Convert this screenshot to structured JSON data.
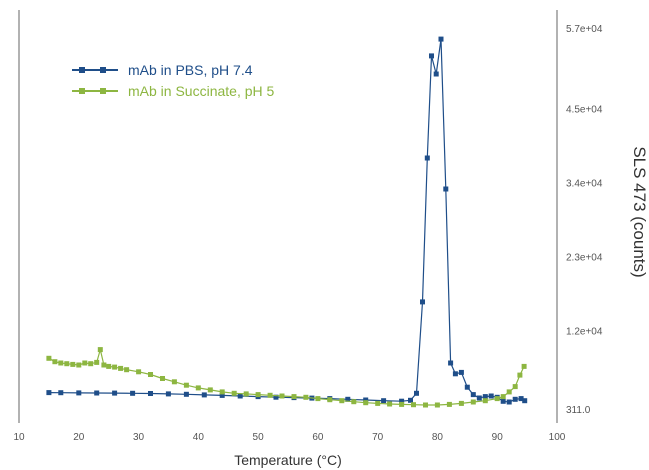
{
  "chart_data": {
    "type": "line",
    "xlabel": "Temperature (°C)",
    "ylabel": "SLS 473 (counts)",
    "xlim": [
      10,
      100
    ],
    "ylim": [
      311,
      57000
    ],
    "x_ticks": [
      "10",
      "20",
      "30",
      "40",
      "50",
      "60",
      "70",
      "80",
      "90",
      "100"
    ],
    "y_ticks": [
      "311.0",
      "1.2e+04",
      "2.3e+04",
      "3.4e+04",
      "4.5e+04",
      "5.7e+04"
    ],
    "y_tick_values": [
      311,
      12000,
      23000,
      34000,
      45000,
      57000
    ],
    "legend_position": "top-left",
    "series": [
      {
        "name": "mAb in PBS, pH 7.4",
        "color": "#1f4e89",
        "points": [
          [
            15,
            2900
          ],
          [
            17,
            2880
          ],
          [
            20,
            2850
          ],
          [
            23,
            2840
          ],
          [
            26,
            2820
          ],
          [
            29,
            2790
          ],
          [
            32,
            2760
          ],
          [
            35,
            2700
          ],
          [
            38,
            2640
          ],
          [
            41,
            2560
          ],
          [
            44,
            2480
          ],
          [
            47,
            2400
          ],
          [
            50,
            2300
          ],
          [
            53,
            2220
          ],
          [
            56,
            2150
          ],
          [
            59,
            2080
          ],
          [
            62,
            2000
          ],
          [
            65,
            1900
          ],
          [
            68,
            1800
          ],
          [
            71,
            1700
          ],
          [
            74,
            1620
          ],
          [
            75.5,
            1750
          ],
          [
            76.5,
            2800
          ],
          [
            77.5,
            16400
          ],
          [
            78.3,
            37800
          ],
          [
            79,
            53000
          ],
          [
            79.8,
            50300
          ],
          [
            80.6,
            55500
          ],
          [
            81.4,
            33200
          ],
          [
            82.2,
            7300
          ],
          [
            83,
            5700
          ],
          [
            84,
            5900
          ],
          [
            85,
            3700
          ],
          [
            86,
            2600
          ],
          [
            87,
            2100
          ],
          [
            88,
            2300
          ],
          [
            89,
            2400
          ],
          [
            90,
            2200
          ],
          [
            91,
            1600
          ],
          [
            92,
            1500
          ],
          [
            93,
            1900
          ],
          [
            94,
            2000
          ],
          [
            94.6,
            1700
          ]
        ]
      },
      {
        "name": "mAb in Succinate, pH 5",
        "color": "#8db641",
        "points": [
          [
            15,
            8000
          ],
          [
            16,
            7500
          ],
          [
            17,
            7300
          ],
          [
            18,
            7200
          ],
          [
            19,
            7100
          ],
          [
            20,
            7000
          ],
          [
            21,
            7300
          ],
          [
            22,
            7200
          ],
          [
            23,
            7400
          ],
          [
            23.6,
            9300
          ],
          [
            24.2,
            7000
          ],
          [
            25,
            6800
          ],
          [
            26,
            6700
          ],
          [
            27,
            6500
          ],
          [
            28,
            6300
          ],
          [
            30,
            6000
          ],
          [
            32,
            5600
          ],
          [
            34,
            5000
          ],
          [
            36,
            4500
          ],
          [
            38,
            4000
          ],
          [
            40,
            3600
          ],
          [
            42,
            3300
          ],
          [
            44,
            3000
          ],
          [
            46,
            2800
          ],
          [
            48,
            2700
          ],
          [
            50,
            2600
          ],
          [
            52,
            2500
          ],
          [
            54,
            2400
          ],
          [
            56,
            2300
          ],
          [
            58,
            2200
          ],
          [
            60,
            2000
          ],
          [
            62,
            1850
          ],
          [
            64,
            1700
          ],
          [
            66,
            1550
          ],
          [
            68,
            1400
          ],
          [
            70,
            1300
          ],
          [
            72,
            1200
          ],
          [
            74,
            1150
          ],
          [
            76,
            1100
          ],
          [
            78,
            1050
          ],
          [
            80,
            1050
          ],
          [
            82,
            1150
          ],
          [
            84,
            1300
          ],
          [
            86,
            1500
          ],
          [
            88,
            1700
          ],
          [
            90,
            2000
          ],
          [
            91,
            2300
          ],
          [
            92,
            3000
          ],
          [
            93,
            3800
          ],
          [
            93.8,
            5500
          ],
          [
            94.5,
            6800
          ]
        ]
      }
    ]
  }
}
